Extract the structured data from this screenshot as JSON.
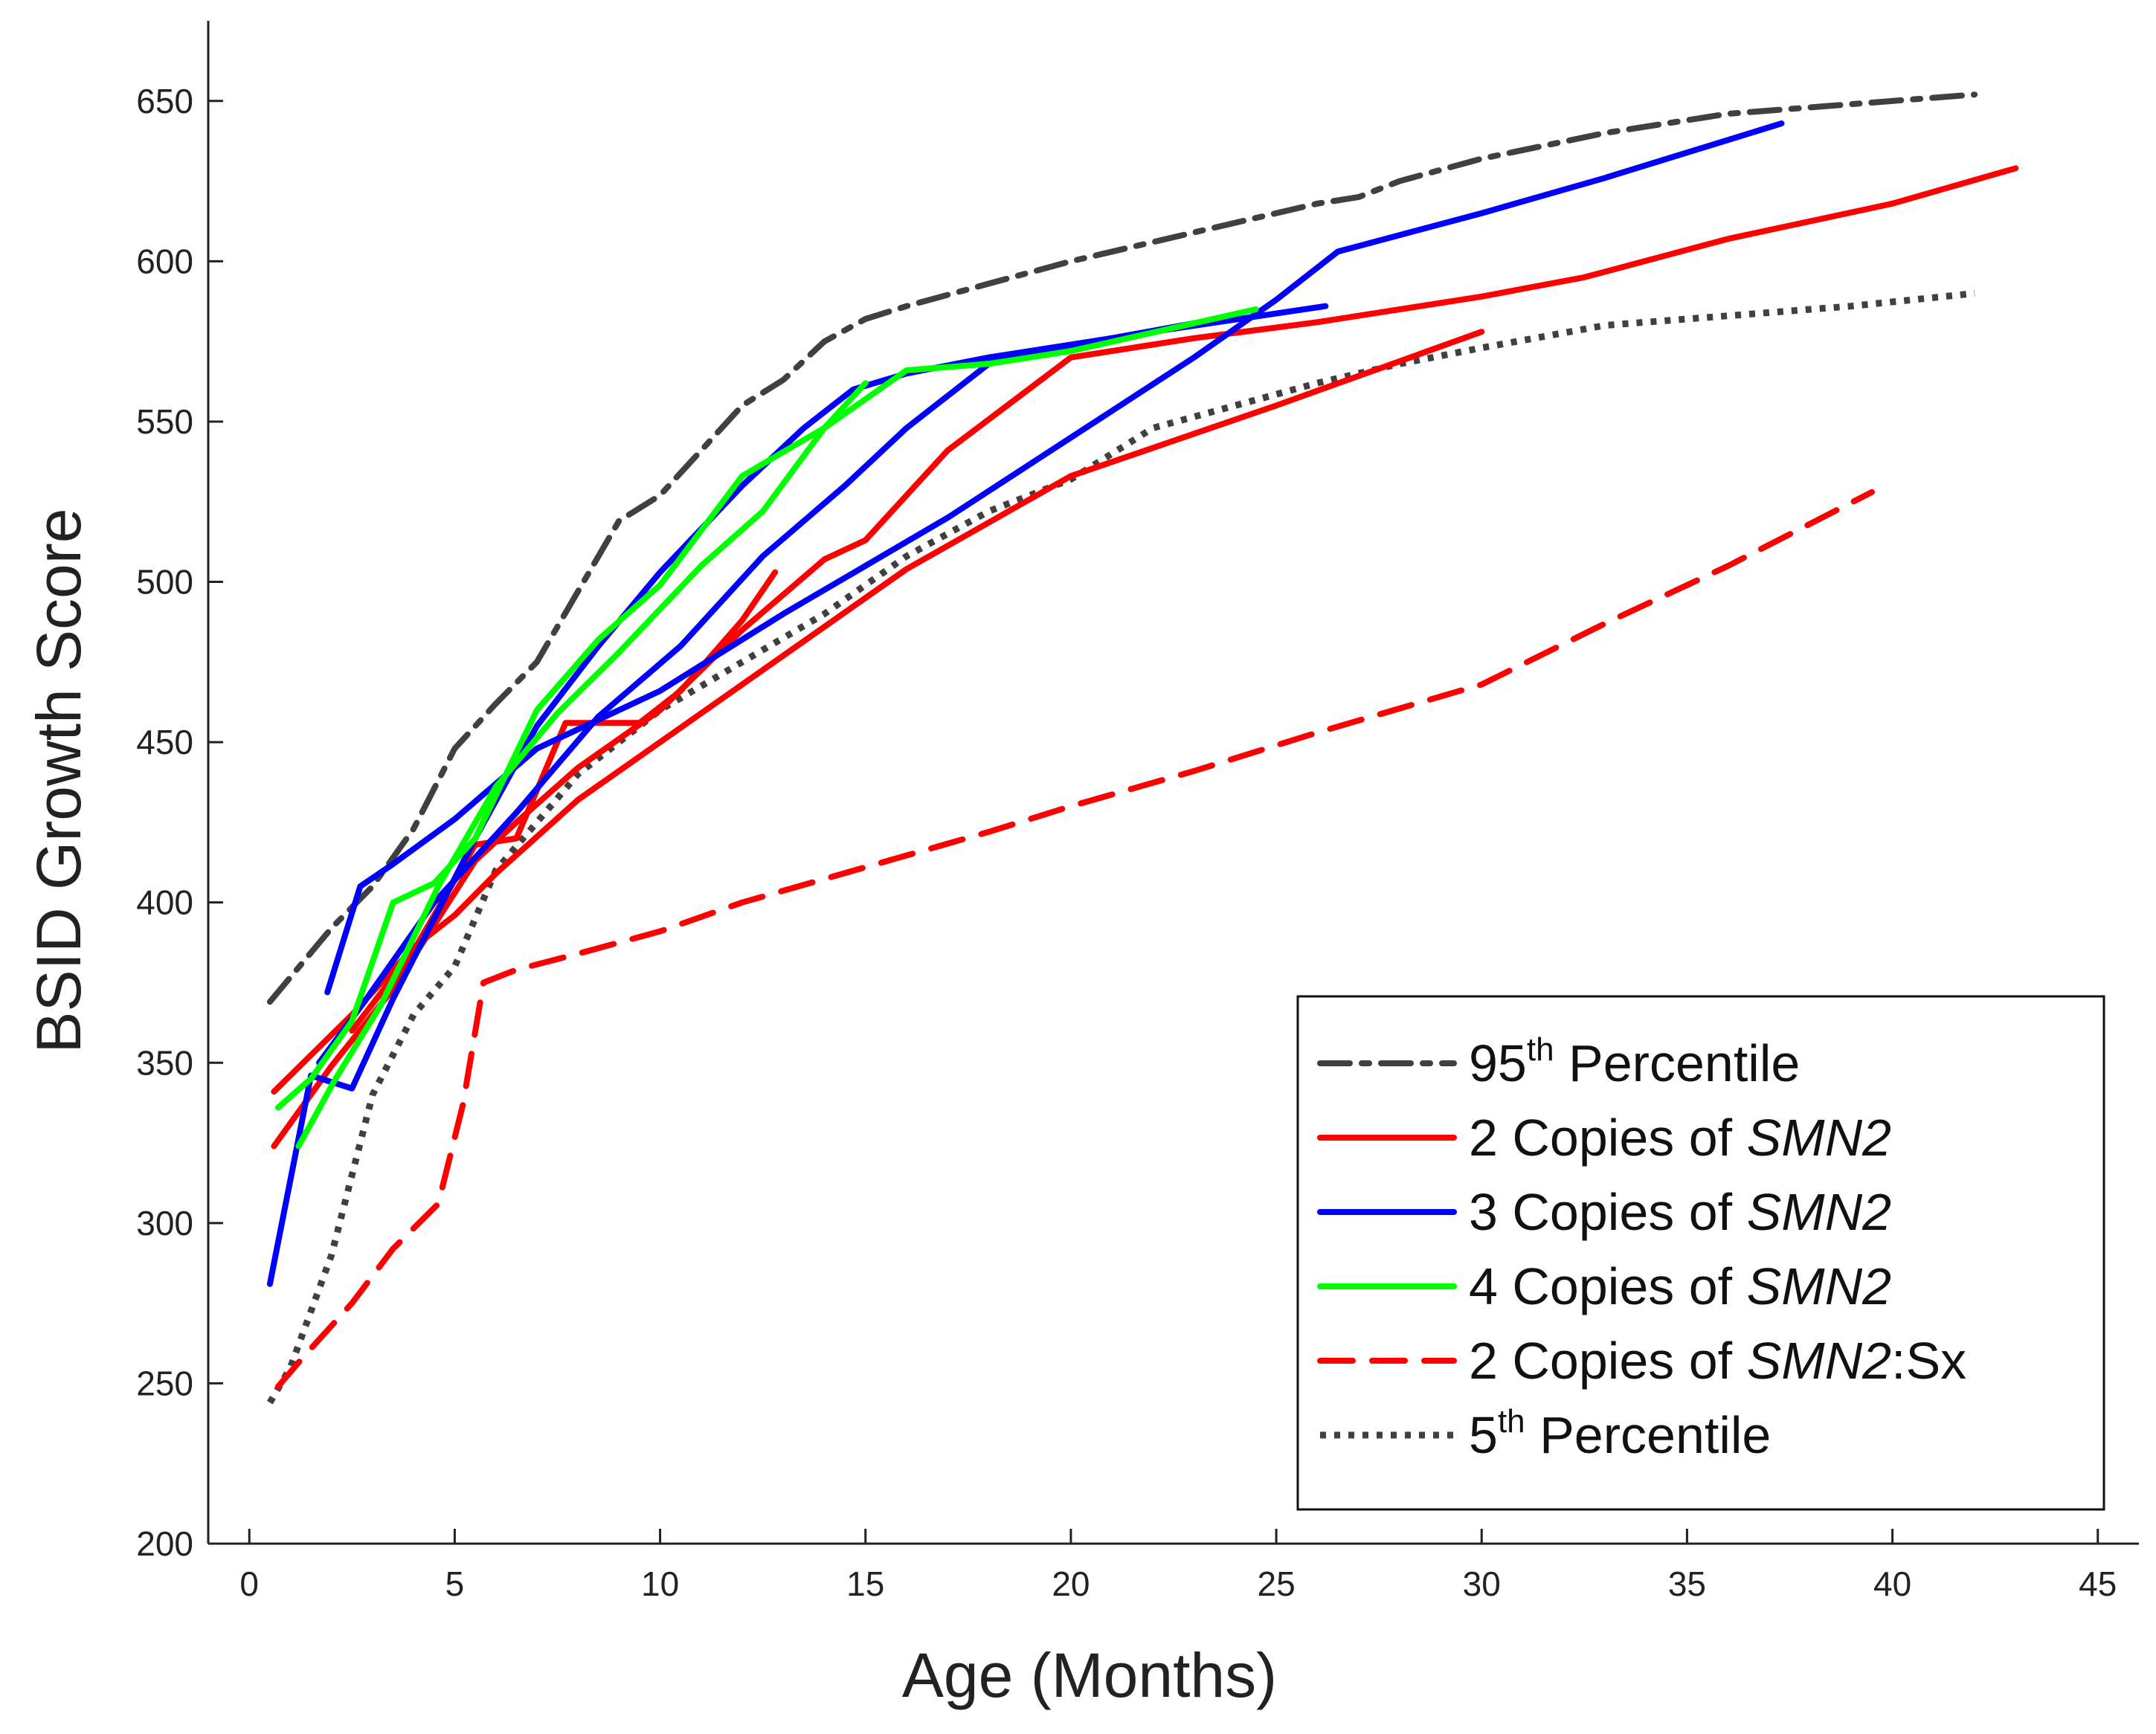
{
  "chart_data": {
    "type": "line",
    "xlabel": "Age (Months)",
    "ylabel": "BSID Growth Score",
    "xlim": [
      -1,
      46
    ],
    "ylim": [
      200,
      675
    ],
    "xticks": [
      0,
      5,
      10,
      15,
      20,
      25,
      30,
      35,
      40,
      45
    ],
    "yticks": [
      200,
      250,
      300,
      350,
      400,
      450,
      500,
      550,
      600,
      650
    ],
    "grid": false,
    "legend_position": "bottom-right",
    "legend": [
      {
        "key": "p95",
        "prefix": "95",
        "sup": "th",
        "text": " Percentile",
        "italic": "",
        "suffix": "",
        "color": "#404040",
        "dash": "dashdot"
      },
      {
        "key": "c2",
        "prefix": "2 Copies of  ",
        "sup": "",
        "text": "",
        "italic": "SMN2",
        "suffix": "",
        "color": "#ff0000",
        "dash": "solid"
      },
      {
        "key": "c3",
        "prefix": "3 Copies of  ",
        "sup": "",
        "text": "",
        "italic": "SMN2",
        "suffix": "",
        "color": "#0000ff",
        "dash": "solid"
      },
      {
        "key": "c4",
        "prefix": "4 Copies of  ",
        "sup": "",
        "text": "",
        "italic": "SMN2",
        "suffix": "",
        "color": "#00ff00",
        "dash": "solid"
      },
      {
        "key": "c2sx",
        "prefix": "2 Copies of  ",
        "sup": "",
        "text": "",
        "italic": "SMN2",
        "suffix": ":Sx",
        "color": "#ff0000",
        "dash": "dashed"
      },
      {
        "key": "p5",
        "prefix": "5",
        "sup": "th",
        "text": " Percentile",
        "italic": "",
        "suffix": "",
        "color": "#404040",
        "dash": "dotted"
      }
    ],
    "series": [
      {
        "key": "p95",
        "color": "#404040",
        "dash": "dashdot",
        "points": [
          [
            0.5,
            369
          ],
          [
            2,
            392
          ],
          [
            3,
            405
          ],
          [
            4,
            423
          ],
          [
            5,
            448
          ],
          [
            6,
            462
          ],
          [
            7,
            475
          ],
          [
            8,
            497
          ],
          [
            9,
            519
          ],
          [
            10,
            527
          ],
          [
            11,
            541
          ],
          [
            12,
            555
          ],
          [
            13,
            563
          ],
          [
            14,
            575
          ],
          [
            15,
            582
          ],
          [
            16,
            586
          ],
          [
            18,
            593
          ],
          [
            20,
            600
          ],
          [
            22,
            606
          ],
          [
            24,
            612
          ],
          [
            26,
            618
          ],
          [
            27,
            620
          ],
          [
            28,
            625
          ],
          [
            30,
            632
          ],
          [
            33,
            640
          ],
          [
            36,
            646
          ],
          [
            38,
            648
          ],
          [
            40,
            650
          ],
          [
            42,
            652
          ]
        ]
      },
      {
        "key": "p5",
        "color": "#404040",
        "dash": "dotted",
        "points": [
          [
            0.5,
            244
          ],
          [
            1,
            255
          ],
          [
            2,
            290
          ],
          [
            3,
            340
          ],
          [
            4,
            365
          ],
          [
            5,
            380
          ],
          [
            6,
            410
          ],
          [
            7,
            425
          ],
          [
            8,
            440
          ],
          [
            10,
            460
          ],
          [
            12,
            475
          ],
          [
            14,
            490
          ],
          [
            16,
            508
          ],
          [
            18,
            522
          ],
          [
            20,
            532
          ],
          [
            22,
            548
          ],
          [
            24,
            555
          ],
          [
            26,
            562
          ],
          [
            28,
            568
          ],
          [
            30,
            573
          ],
          [
            33,
            580
          ],
          [
            36,
            583
          ],
          [
            39,
            586
          ],
          [
            42,
            590
          ]
        ]
      },
      {
        "key": "c2sx",
        "color": "#ff0000",
        "dash": "dashed",
        "points": [
          [
            0.7,
            249
          ],
          [
            1.3,
            258
          ],
          [
            2.5,
            275
          ],
          [
            3.5,
            292
          ],
          [
            4.6,
            306
          ],
          [
            5.2,
            337
          ],
          [
            5.7,
            375
          ],
          [
            6.5,
            379
          ],
          [
            8,
            384
          ],
          [
            10,
            391
          ],
          [
            12,
            400
          ],
          [
            15,
            411
          ],
          [
            18,
            422
          ],
          [
            20,
            430
          ],
          [
            23,
            441
          ],
          [
            26,
            453
          ],
          [
            30,
            468
          ],
          [
            33,
            487
          ],
          [
            36,
            505
          ],
          [
            39.5,
            528
          ]
        ]
      },
      {
        "key": "c2",
        "color": "#ff0000",
        "dash": "solid",
        "points": [
          [
            0.6,
            324
          ],
          [
            2,
            349
          ],
          [
            3.5,
            373
          ],
          [
            5,
            403
          ],
          [
            5.5,
            413
          ],
          [
            6.5,
            425
          ],
          [
            8,
            442
          ],
          [
            10,
            460
          ],
          [
            12,
            485
          ],
          [
            14,
            507
          ],
          [
            15,
            513
          ],
          [
            17,
            541
          ],
          [
            20,
            570
          ],
          [
            23,
            576
          ],
          [
            26,
            581
          ],
          [
            30,
            589
          ],
          [
            32.5,
            595
          ],
          [
            36,
            607
          ],
          [
            40,
            618
          ],
          [
            43,
            629
          ]
        ]
      },
      {
        "key": "c2",
        "color": "#ff0000",
        "dash": "solid",
        "points": [
          [
            0.6,
            341
          ],
          [
            2.5,
            365
          ],
          [
            4,
            386
          ],
          [
            5,
            396
          ],
          [
            6,
            409
          ],
          [
            8,
            432
          ],
          [
            12,
            468
          ],
          [
            16,
            504
          ],
          [
            20,
            533
          ],
          [
            25,
            555
          ],
          [
            30,
            578
          ]
        ]
      },
      {
        "key": "c2",
        "color": "#ff0000",
        "dash": "solid",
        "points": [
          [
            2.5,
            360
          ],
          [
            4,
            385
          ],
          [
            5.5,
            418
          ],
          [
            6.5,
            420
          ],
          [
            7.7,
            456
          ],
          [
            9,
            456
          ],
          [
            9.5,
            456
          ],
          [
            10.5,
            466
          ],
          [
            12,
            488
          ],
          [
            12.8,
            503
          ]
        ]
      },
      {
        "key": "c3",
        "color": "#0000ff",
        "dash": "solid",
        "points": [
          [
            0.5,
            281
          ],
          [
            1.5,
            346
          ],
          [
            2.5,
            342
          ],
          [
            3.5,
            370
          ],
          [
            4.5,
            395
          ],
          [
            5.5,
            420
          ],
          [
            7,
            455
          ],
          [
            8.5,
            480
          ],
          [
            10,
            503
          ],
          [
            12,
            530
          ],
          [
            13.5,
            548
          ],
          [
            14.7,
            560
          ],
          [
            16,
            565
          ],
          [
            18,
            570
          ],
          [
            22,
            578
          ],
          [
            26.2,
            586
          ]
        ]
      },
      {
        "key": "c3",
        "color": "#0000ff",
        "dash": "solid",
        "points": [
          [
            1.9,
            372
          ],
          [
            2.7,
            405
          ],
          [
            3.5,
            412
          ],
          [
            5,
            426
          ],
          [
            7,
            448
          ],
          [
            10,
            466
          ],
          [
            13,
            490
          ],
          [
            15,
            505
          ],
          [
            17,
            520
          ],
          [
            20,
            545
          ],
          [
            23,
            570
          ],
          [
            25,
            588
          ],
          [
            26.5,
            603
          ],
          [
            30,
            615
          ],
          [
            33,
            626
          ],
          [
            37.3,
            643
          ]
        ]
      },
      {
        "key": "c3",
        "color": "#0000ff",
        "dash": "solid",
        "points": [
          [
            1.7,
            350
          ],
          [
            2.8,
            369
          ],
          [
            4.5,
            400
          ],
          [
            6.5,
            428
          ],
          [
            8.5,
            458
          ],
          [
            10.5,
            480
          ],
          [
            12.5,
            508
          ],
          [
            14.5,
            530
          ],
          [
            16,
            548
          ],
          [
            18.2,
            570
          ],
          [
            21,
            576
          ],
          [
            24,
            583
          ]
        ]
      },
      {
        "key": "c4",
        "color": "#00ff00",
        "dash": "solid",
        "points": [
          [
            0.7,
            336
          ],
          [
            1.5,
            345
          ],
          [
            2.5,
            363
          ],
          [
            3.5,
            400
          ],
          [
            4.5,
            406
          ],
          [
            5.5,
            420
          ],
          [
            7,
            460
          ],
          [
            8.5,
            482
          ],
          [
            10,
            499
          ],
          [
            12,
            533
          ],
          [
            14,
            548
          ],
          [
            16,
            566
          ],
          [
            18,
            568
          ],
          [
            20,
            572
          ],
          [
            24.5,
            585
          ]
        ]
      },
      {
        "key": "c4",
        "color": "#00ff00",
        "dash": "solid",
        "points": [
          [
            1.2,
            324
          ],
          [
            2.1,
            345
          ],
          [
            3.2,
            368
          ],
          [
            4.6,
            405
          ],
          [
            6,
            436
          ],
          [
            7.5,
            459
          ],
          [
            9,
            478
          ],
          [
            11,
            505
          ],
          [
            12.5,
            522
          ],
          [
            14,
            548
          ],
          [
            15,
            562
          ]
        ]
      }
    ]
  }
}
